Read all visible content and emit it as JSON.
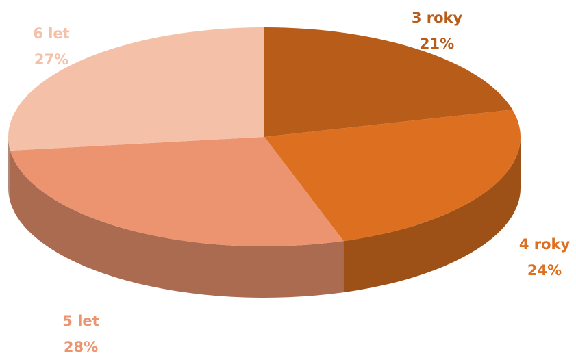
{
  "chart_data": {
    "type": "pie",
    "categories": [
      "3 roky",
      "4 roky",
      "5 let",
      "6 let"
    ],
    "values": [
      21,
      24,
      28,
      27
    ],
    "value_labels": [
      "21%",
      "24%",
      "28%",
      "27%"
    ],
    "colors": [
      "#b85c1a",
      "#dc7020",
      "#ec9470",
      "#f4c0a8"
    ]
  }
}
